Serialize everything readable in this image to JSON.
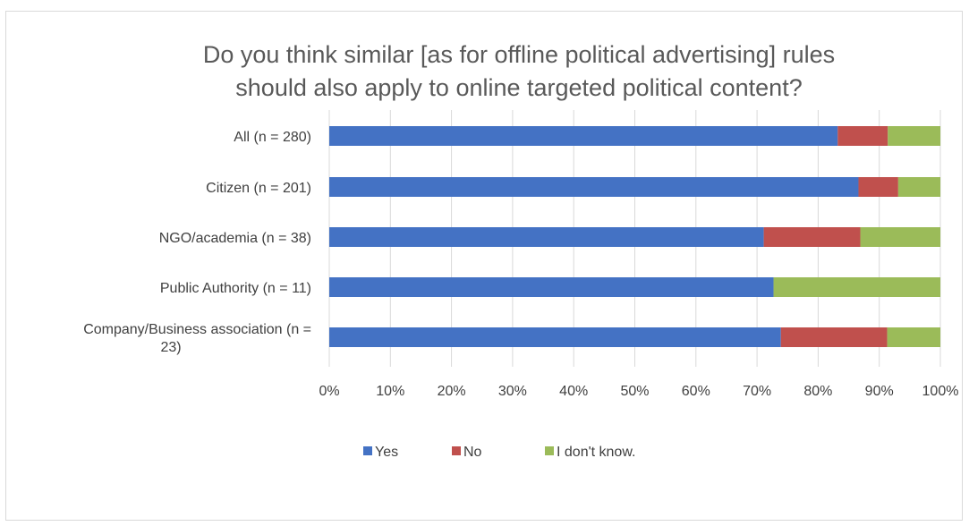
{
  "chart_data": {
    "type": "bar",
    "orientation": "horizontal",
    "stacked": true,
    "title_lines": [
      "Do you think similar [as for offline political advertising] rules",
      "should also apply to online targeted political content?"
    ],
    "categories": [
      [
        "All (n = 280)"
      ],
      [
        "Citizen (n = 201)"
      ],
      [
        "NGO/academia (n = 38)"
      ],
      [
        "Public Authority (n = 11)"
      ],
      [
        "Company/Business association (n =",
        "23)"
      ]
    ],
    "series": [
      {
        "name": "Yes",
        "color": "#4472c4",
        "values": [
          83.2,
          86.6,
          71.1,
          72.7,
          73.9
        ]
      },
      {
        "name": "No",
        "color": "#c0504d",
        "values": [
          8.2,
          6.5,
          15.8,
          0,
          17.4
        ]
      },
      {
        "name": "I don't know.",
        "color": "#9bbb59",
        "values": [
          8.6,
          6.9,
          13.1,
          27.3,
          8.7
        ]
      }
    ],
    "x_ticks": [
      "0%",
      "10%",
      "20%",
      "30%",
      "40%",
      "50%",
      "60%",
      "70%",
      "80%",
      "90%",
      "100%"
    ],
    "xlim": [
      0,
      100
    ],
    "grid": true,
    "legend_position": "bottom"
  }
}
